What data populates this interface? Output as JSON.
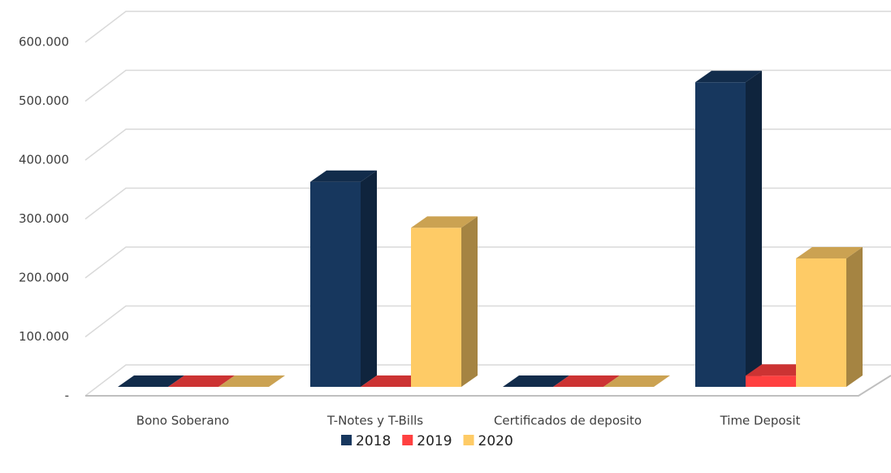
{
  "chart_data": {
    "type": "bar3d",
    "categories": [
      "Bono Soberano",
      "T-Notes y T-Bills",
      "Certificados de deposito",
      "Time Deposit"
    ],
    "series": [
      {
        "name": "2018",
        "color": "#17375e",
        "values": [
          0,
          348000,
          0,
          517000
        ]
      },
      {
        "name": "2019",
        "color": "#ff4040",
        "values": [
          0,
          0,
          0,
          19000
        ]
      },
      {
        "name": "2020",
        "color": "#fecb66",
        "values": [
          0,
          270000,
          0,
          218000
        ]
      }
    ],
    "ylim": [
      0,
      600000
    ],
    "yticks": [
      {
        "value": 0,
        "label": "-"
      },
      {
        "value": 100000,
        "label": "100.000"
      },
      {
        "value": 200000,
        "label": "200.000"
      },
      {
        "value": 300000,
        "label": "300.000"
      },
      {
        "value": 400000,
        "label": "400.000"
      },
      {
        "value": 500000,
        "label": "500.000"
      },
      {
        "value": 600000,
        "label": "600.000"
      }
    ],
    "grid": true,
    "legend": "bottom"
  }
}
